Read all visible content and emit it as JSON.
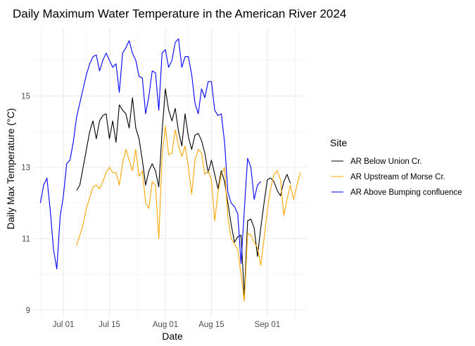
{
  "chart_data": {
    "type": "line",
    "title": "Daily Maximum Water Temperature in the American River 2024",
    "xlabel": "Date",
    "ylabel": "Daily Max Temperature (°C)",
    "x_ticks": [
      {
        "label": "Jul 01",
        "date": "2024-07-01"
      },
      {
        "label": "Jul 15",
        "date": "2024-07-15"
      },
      {
        "label": "Aug 01",
        "date": "2024-08-01"
      },
      {
        "label": "Aug 15",
        "date": "2024-08-15"
      },
      {
        "label": "Sep 01",
        "date": "2024-09-01"
      }
    ],
    "y_ticks": [
      9,
      11,
      13,
      15
    ],
    "xlim": [
      "2024-06-22",
      "2024-09-13"
    ],
    "ylim": [
      8.8,
      16.9
    ],
    "grid": true,
    "legend": {
      "title": "Site",
      "position": "right"
    },
    "series": [
      {
        "name": "AR Below Union Cr.",
        "color": "#000000",
        "start": "2024-07-05",
        "values": [
          12.35,
          12.5,
          13.0,
          13.5,
          14.0,
          14.3,
          13.8,
          14.3,
          14.45,
          14.5,
          13.8,
          14.3,
          13.7,
          14.75,
          14.6,
          14.5,
          14.1,
          14.95,
          14.1,
          13.8,
          13.2,
          12.5,
          12.9,
          13.1,
          12.9,
          12.45,
          14.0,
          15.2,
          14.6,
          14.3,
          14.65,
          14.0,
          13.6,
          14.5,
          13.85,
          13.5,
          13.9,
          13.95,
          13.75,
          13.4,
          12.85,
          13.2,
          12.8,
          12.4,
          12.9,
          12.6,
          12.0,
          11.4,
          10.9,
          11.05,
          11.1,
          9.4,
          11.5,
          11.55,
          11.3,
          10.5,
          11.3,
          12.0,
          12.65,
          12.7,
          12.6,
          12.35,
          12.2,
          12.6,
          12.8,
          12.55
        ]
      },
      {
        "name": "AR Upstream of Morse Cr.",
        "color": "#FFA500",
        "start": "2024-07-05",
        "values": [
          10.8,
          11.1,
          11.4,
          11.85,
          12.15,
          12.45,
          12.5,
          12.4,
          12.6,
          12.85,
          13.0,
          12.85,
          12.85,
          12.5,
          13.1,
          13.5,
          13.2,
          12.9,
          13.5,
          12.75,
          12.9,
          12.0,
          11.85,
          12.6,
          12.5,
          11.0,
          13.3,
          14.15,
          13.35,
          13.4,
          14.05,
          13.6,
          13.3,
          13.6,
          13.0,
          12.25,
          13.2,
          13.5,
          13.4,
          12.8,
          12.9,
          12.65,
          11.5,
          12.3,
          12.8,
          13.0,
          11.6,
          11.0,
          10.85,
          10.7,
          10.0,
          9.25,
          11.15,
          11.1,
          10.9,
          10.75,
          10.25,
          11.0,
          11.8,
          12.4,
          12.8,
          12.9,
          12.65,
          11.65,
          12.1,
          12.5,
          12.1,
          12.5,
          12.85
        ]
      },
      {
        "name": "AR Above Bumping confluence",
        "color": "#0000FF",
        "start": "2024-06-24",
        "values": [
          12.0,
          12.5,
          12.7,
          11.8,
          10.7,
          10.15,
          11.6,
          12.2,
          13.1,
          13.2,
          13.7,
          14.4,
          14.8,
          15.2,
          15.6,
          15.9,
          16.1,
          16.15,
          15.7,
          16.0,
          16.2,
          16.0,
          15.8,
          15.9,
          15.1,
          16.2,
          16.35,
          16.55,
          16.2,
          16.0,
          15.55,
          15.5,
          14.5,
          15.0,
          15.7,
          15.65,
          14.6,
          16.2,
          16.3,
          15.8,
          16.0,
          16.5,
          16.6,
          15.8,
          16.1,
          16.1,
          15.6,
          14.8,
          14.5,
          15.2,
          14.95,
          15.4,
          15.4,
          14.6,
          14.45,
          14.5,
          13.7,
          12.3,
          12.0,
          11.9,
          11.7,
          10.3,
          11.8,
          13.25,
          13.0,
          12.1,
          12.5,
          12.6
        ]
      }
    ]
  }
}
